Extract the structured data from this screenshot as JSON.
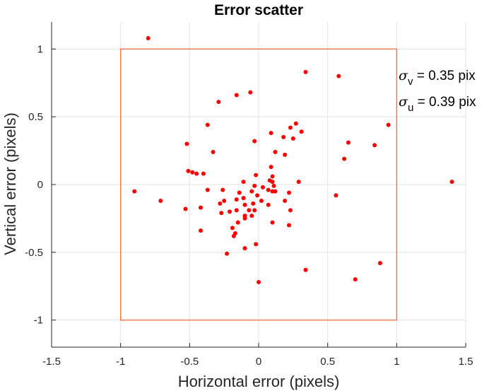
{
  "chart_data": {
    "type": "scatter",
    "title": "Error scatter",
    "xlabel": "Horizontal error (pixels)",
    "ylabel": "Vertical error (pixels)",
    "xlim": [
      -1.5,
      1.5
    ],
    "ylim": [
      -1.2,
      1.2
    ],
    "xticks": [
      -1.5,
      -1,
      -0.5,
      0,
      0.5,
      1,
      1.5
    ],
    "xtick_labels": [
      "-1.5",
      "-1",
      "-0.5",
      "0",
      "0.5",
      "1",
      "1.5"
    ],
    "yticks": [
      -1,
      -0.5,
      0,
      0.5,
      1
    ],
    "ytick_labels": [
      "-1",
      "-0.5",
      "0",
      "0.5",
      "1"
    ],
    "grid": true,
    "point_color": "#ff0000",
    "box_color": "#f07040",
    "box": {
      "x": [
        -1,
        1
      ],
      "y": [
        -1,
        1
      ]
    },
    "annotations": [
      {
        "symbol": "σ",
        "subscript": "v",
        "text": " = 0.35 pix"
      },
      {
        "symbol": "σ",
        "subscript": "u",
        "text": " = 0.39 pix"
      }
    ],
    "points": [
      [
        -0.8,
        1.08
      ],
      [
        0.34,
        0.83
      ],
      [
        0.58,
        0.8
      ],
      [
        -0.06,
        0.68
      ],
      [
        -0.16,
        0.66
      ],
      [
        -0.29,
        0.61
      ],
      [
        -0.37,
        0.44
      ],
      [
        0.94,
        0.44
      ],
      [
        0.27,
        0.45
      ],
      [
        0.23,
        0.42
      ],
      [
        0.31,
        0.39
      ],
      [
        0.09,
        0.38
      ],
      [
        -0.52,
        0.3
      ],
      [
        0.65,
        0.31
      ],
      [
        0.84,
        0.29
      ],
      [
        -0.03,
        0.32
      ],
      [
        0.18,
        0.35
      ],
      [
        0.25,
        0.34
      ],
      [
        -0.33,
        0.24
      ],
      [
        0.12,
        0.24
      ],
      [
        0.19,
        0.22
      ],
      [
        0.62,
        0.19
      ],
      [
        0.09,
        0.13
      ],
      [
        -0.51,
        0.1
      ],
      [
        -0.48,
        0.09
      ],
      [
        -0.45,
        0.08
      ],
      [
        -0.4,
        0.08
      ],
      [
        0.1,
        0.06
      ],
      [
        0.08,
        0.03
      ],
      [
        0.1,
        0.02
      ],
      [
        -0.02,
        0.07
      ],
      [
        -0.11,
        0.02
      ],
      [
        0.29,
        0.02
      ],
      [
        1.4,
        0.02
      ],
      [
        -0.03,
        -0.01
      ],
      [
        0.11,
        -0.01
      ],
      [
        -0.37,
        -0.04
      ],
      [
        -0.26,
        -0.04
      ],
      [
        -0.9,
        -0.05
      ],
      [
        0.03,
        -0.02
      ],
      [
        -0.05,
        -0.05
      ],
      [
        0.07,
        -0.04
      ],
      [
        0.1,
        -0.05
      ],
      [
        0.12,
        -0.05
      ],
      [
        0.22,
        -0.06
      ],
      [
        -0.14,
        -0.06
      ],
      [
        -0.11,
        -0.1
      ],
      [
        -0.01,
        -0.08
      ],
      [
        -0.16,
        -0.11
      ],
      [
        0.56,
        -0.08
      ],
      [
        -0.71,
        -0.12
      ],
      [
        -0.25,
        -0.12
      ],
      [
        0.02,
        -0.12
      ],
      [
        -0.04,
        -0.14
      ],
      [
        0.19,
        -0.12
      ],
      [
        -0.28,
        -0.14
      ],
      [
        0.07,
        -0.15
      ],
      [
        -0.1,
        -0.15
      ],
      [
        -0.42,
        -0.17
      ],
      [
        -0.53,
        -0.18
      ],
      [
        -0.03,
        -0.19
      ],
      [
        -0.16,
        -0.19
      ],
      [
        -0.07,
        -0.19
      ],
      [
        0.23,
        -0.19
      ],
      [
        -0.27,
        -0.21
      ],
      [
        -0.21,
        -0.2
      ],
      [
        -0.1,
        -0.23
      ],
      [
        -0.05,
        -0.23
      ],
      [
        0.1,
        -0.28
      ],
      [
        -0.1,
        -0.25
      ],
      [
        -0.15,
        -0.28
      ],
      [
        0.22,
        -0.3
      ],
      [
        -0.19,
        -0.32
      ],
      [
        -0.42,
        -0.34
      ],
      [
        -0.17,
        -0.36
      ],
      [
        -0.18,
        -0.38
      ],
      [
        -0.1,
        -0.47
      ],
      [
        -0.23,
        -0.51
      ],
      [
        -0.02,
        -0.44
      ],
      [
        0.88,
        -0.58
      ],
      [
        0.34,
        -0.63
      ],
      [
        0.7,
        -0.7
      ],
      [
        0.0,
        -0.72
      ]
    ]
  }
}
